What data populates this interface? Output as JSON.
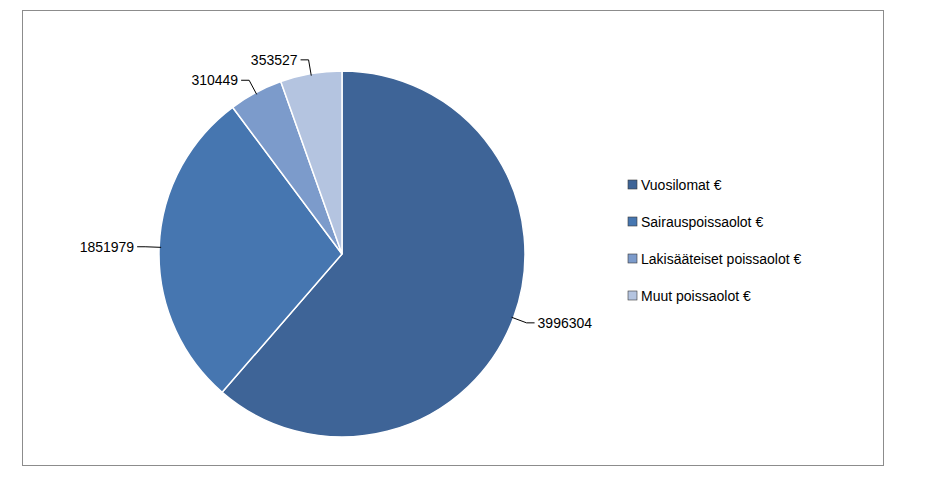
{
  "chart_data": {
    "type": "pie",
    "categories": [
      "Vuosilomat €",
      "Sairauspoissaolot €",
      "Lakisääteiset poissaolot €",
      "Muut poissaolot €"
    ],
    "values": [
      3996304,
      1851979,
      310449,
      353527
    ],
    "colors": [
      "#3e6497",
      "#4676b0",
      "#7c9bcb",
      "#b4c4e0"
    ],
    "data_labels": true,
    "legend": "right"
  }
}
